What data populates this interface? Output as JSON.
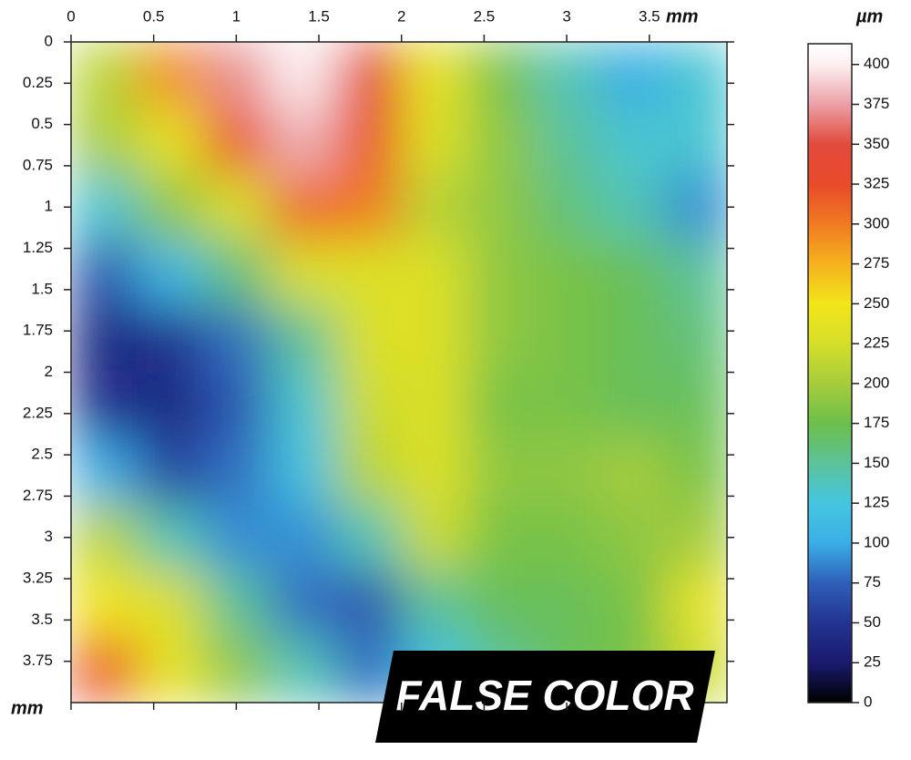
{
  "chart_data": {
    "type": "heatmap",
    "x_unit": "mm",
    "y_unit": "mm",
    "colorbar_label": "µm",
    "annotation": "FALSE COLOR",
    "xlim": [
      0,
      3.97
    ],
    "ylim": [
      0,
      4
    ],
    "xticks": [
      0,
      0.5,
      1,
      1.5,
      2,
      2.5,
      3,
      3.5
    ],
    "yticks": [
      0,
      0.25,
      0.5,
      0.75,
      1,
      1.25,
      1.5,
      1.75,
      2,
      2.25,
      2.5,
      2.75,
      3,
      3.25,
      3.5,
      3.75
    ],
    "clim": [
      0,
      413
    ],
    "cticks": [
      0,
      25,
      50,
      75,
      100,
      125,
      150,
      175,
      200,
      225,
      250,
      275,
      300,
      325,
      350,
      375,
      400
    ],
    "colorscale": [
      [
        0,
        "#000000"
      ],
      [
        25,
        "#1a1a6e"
      ],
      [
        50,
        "#23338f"
      ],
      [
        75,
        "#2f5fb8"
      ],
      [
        100,
        "#3aaee6"
      ],
      [
        125,
        "#45c6e0"
      ],
      [
        150,
        "#5cc29a"
      ],
      [
        175,
        "#6cbf4a"
      ],
      [
        200,
        "#a6cc3c"
      ],
      [
        225,
        "#d6df2a"
      ],
      [
        250,
        "#f2e51a"
      ],
      [
        275,
        "#f6b21f"
      ],
      [
        300,
        "#f07a22"
      ],
      [
        325,
        "#e84a2a"
      ],
      [
        350,
        "#e24a3c"
      ],
      [
        375,
        "#eba0a6"
      ],
      [
        400,
        "#fdf0f2"
      ],
      [
        413,
        "#ffffff"
      ]
    ],
    "x": [
      0.2,
      0.6,
      1.0,
      1.4,
      1.8,
      2.2,
      2.6,
      3.0,
      3.4,
      3.8
    ],
    "y": [
      0.2,
      0.6,
      1.0,
      1.4,
      1.8,
      2.2,
      2.6,
      3.0,
      3.4,
      3.8
    ],
    "z": [
      [
        210,
        290,
        370,
        400,
        340,
        240,
        180,
        140,
        100,
        130
      ],
      [
        200,
        240,
        320,
        380,
        320,
        230,
        190,
        150,
        130,
        130
      ],
      [
        130,
        190,
        230,
        310,
        300,
        210,
        190,
        160,
        140,
        90
      ],
      [
        70,
        110,
        160,
        230,
        230,
        230,
        190,
        180,
        170,
        150
      ],
      [
        40,
        50,
        80,
        150,
        230,
        230,
        190,
        180,
        170,
        160
      ],
      [
        50,
        40,
        70,
        130,
        220,
        230,
        180,
        180,
        170,
        170
      ],
      [
        100,
        60,
        80,
        120,
        210,
        230,
        190,
        190,
        200,
        180
      ],
      [
        210,
        140,
        90,
        90,
        140,
        220,
        180,
        180,
        190,
        200
      ],
      [
        250,
        230,
        150,
        80,
        70,
        150,
        170,
        170,
        180,
        240
      ],
      [
        320,
        240,
        190,
        140,
        80,
        120,
        150,
        170,
        180,
        220
      ]
    ]
  }
}
